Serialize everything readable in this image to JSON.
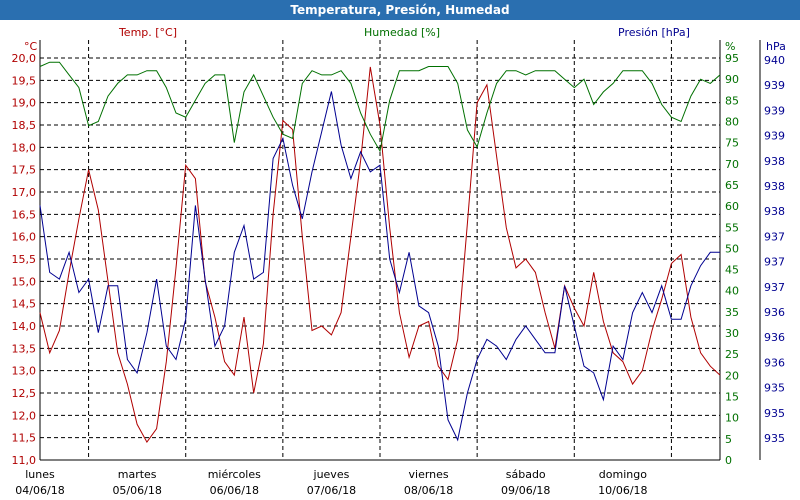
{
  "title": "Temperatura, Presión, Humedad",
  "colors": {
    "temperature": "#b00000",
    "humidity": "#007000",
    "pressure": "#000090",
    "title_bar": "#2a6fb0",
    "grid": "#000000",
    "axis": "#000000"
  },
  "chart_data": {
    "type": "line",
    "title": "Temperatura, Presión, Humedad",
    "grid": true,
    "x_range_days": [
      0,
      7
    ],
    "x_ticks": [
      {
        "day": "lunes",
        "date": "04/06/18"
      },
      {
        "day": "martes",
        "date": "05/06/18"
      },
      {
        "day": "miércoles",
        "date": "06/06/18"
      },
      {
        "day": "jueves",
        "date": "07/06/18"
      },
      {
        "day": "viernes",
        "date": "08/06/18"
      },
      {
        "day": "sábado",
        "date": "09/06/18"
      },
      {
        "day": "domingo",
        "date": "10/06/18"
      }
    ],
    "axes": {
      "temperature": {
        "label": "Temp. [°C]",
        "unit": "°C",
        "range": [
          11.0,
          20.0
        ],
        "ticks": [
          "11,0",
          "11,5",
          "12,0",
          "12,5",
          "13,0",
          "13,5",
          "14,0",
          "14,5",
          "15,0",
          "15,5",
          "16,0",
          "16,5",
          "17,0",
          "17,5",
          "18,0",
          "18,5",
          "19,0",
          "19,5",
          "20,0"
        ]
      },
      "humidity": {
        "label": "Humedad [%]",
        "unit": "%",
        "range": [
          0,
          95
        ],
        "ticks": [
          "0",
          "5",
          "10",
          "15",
          "20",
          "25",
          "30",
          "35",
          "40",
          "45",
          "50",
          "55",
          "60",
          "65",
          "70",
          "75",
          "80",
          "85",
          "90",
          "95"
        ]
      },
      "pressure": {
        "label": "Presión [hPa]",
        "unit": "hPa",
        "range": [
          934.5,
          940.5
        ],
        "ticks": [
          "935",
          "935",
          "935",
          "936",
          "936",
          "936",
          "937",
          "937",
          "937",
          "938",
          "938",
          "938",
          "939",
          "939",
          "939",
          "940"
        ]
      }
    },
    "series": [
      {
        "name": "Temp. [°C]",
        "axis": "temperature",
        "x": [
          0.0,
          0.1,
          0.2,
          0.3,
          0.4,
          0.5,
          0.6,
          0.7,
          0.8,
          0.9,
          1.0,
          1.1,
          1.2,
          1.3,
          1.4,
          1.5,
          1.6,
          1.7,
          1.8,
          1.9,
          2.0,
          2.1,
          2.2,
          2.3,
          2.4,
          2.5,
          2.6,
          2.7,
          2.8,
          2.9,
          3.0,
          3.1,
          3.2,
          3.3,
          3.4,
          3.5,
          3.6,
          3.7,
          3.8,
          3.9,
          4.0,
          4.1,
          4.2,
          4.3,
          4.4,
          4.5,
          4.6,
          4.7,
          4.8,
          4.9,
          5.0,
          5.1,
          5.2,
          5.3,
          5.4,
          5.5,
          5.6,
          5.7,
          5.8,
          5.9,
          6.0,
          6.1,
          6.2,
          6.3,
          6.4,
          6.5,
          6.6,
          6.7,
          6.8,
          6.9,
          7.0
        ],
        "values": [
          14.3,
          13.4,
          13.9,
          15.2,
          16.4,
          17.5,
          16.6,
          15.0,
          13.4,
          12.7,
          11.8,
          11.4,
          11.7,
          13.2,
          15.3,
          17.6,
          17.3,
          15.0,
          14.2,
          13.2,
          12.9,
          14.2,
          12.5,
          13.6,
          16.5,
          18.6,
          18.4,
          16.0,
          13.9,
          14.0,
          13.8,
          14.3,
          16.0,
          17.7,
          19.8,
          18.5,
          16.2,
          14.3,
          13.3,
          14.0,
          14.1,
          13.1,
          12.8,
          13.7,
          16.3,
          19.0,
          19.4,
          17.8,
          16.2,
          15.3,
          15.5,
          15.2,
          14.3,
          13.5,
          14.9,
          14.4,
          14.0,
          15.2,
          14.1,
          13.4,
          13.2,
          12.7,
          13.0,
          13.9,
          14.6,
          15.4,
          15.6,
          14.2,
          13.4,
          13.1,
          12.9
        ]
      },
      {
        "name": "Humedad [%]",
        "axis": "humidity",
        "x": [
          0.0,
          0.1,
          0.2,
          0.3,
          0.4,
          0.5,
          0.6,
          0.7,
          0.8,
          0.9,
          1.0,
          1.1,
          1.2,
          1.3,
          1.4,
          1.5,
          1.6,
          1.7,
          1.8,
          1.9,
          2.0,
          2.1,
          2.2,
          2.3,
          2.4,
          2.5,
          2.6,
          2.7,
          2.8,
          2.9,
          3.0,
          3.1,
          3.2,
          3.3,
          3.4,
          3.5,
          3.6,
          3.7,
          3.8,
          3.9,
          4.0,
          4.1,
          4.2,
          4.3,
          4.4,
          4.5,
          4.6,
          4.7,
          4.8,
          4.9,
          5.0,
          5.1,
          5.2,
          5.3,
          5.4,
          5.5,
          5.6,
          5.7,
          5.8,
          5.9,
          6.0,
          6.1,
          6.2,
          6.3,
          6.4,
          6.5,
          6.6,
          6.7,
          6.8,
          6.9,
          7.0
        ],
        "values": [
          93,
          94,
          94,
          91,
          88,
          79,
          80,
          86,
          89,
          91,
          91,
          92,
          92,
          88,
          82,
          81,
          85,
          89,
          91,
          91,
          75,
          87,
          91,
          86,
          81,
          77,
          76,
          89,
          92,
          91,
          91,
          92,
          89,
          82,
          77,
          73,
          85,
          92,
          92,
          92,
          93,
          93,
          93,
          89,
          78,
          74,
          82,
          89,
          92,
          92,
          91,
          92,
          92,
          92,
          90,
          88,
          90,
          84,
          87,
          89,
          92,
          92,
          92,
          89,
          84,
          81,
          80,
          86,
          90,
          89,
          91
        ]
      },
      {
        "name": "Presión [hPa]",
        "axis": "pressure",
        "x": [
          0.0,
          0.1,
          0.2,
          0.3,
          0.4,
          0.5,
          0.6,
          0.7,
          0.8,
          0.9,
          1.0,
          1.1,
          1.2,
          1.3,
          1.4,
          1.5,
          1.6,
          1.7,
          1.8,
          1.9,
          2.0,
          2.1,
          2.2,
          2.3,
          2.4,
          2.5,
          2.6,
          2.7,
          2.8,
          2.9,
          3.0,
          3.1,
          3.2,
          3.3,
          3.4,
          3.5,
          3.6,
          3.7,
          3.8,
          3.9,
          4.0,
          4.1,
          4.2,
          4.3,
          4.4,
          4.5,
          4.6,
          4.7,
          4.8,
          4.9,
          5.0,
          5.1,
          5.2,
          5.3,
          5.4,
          5.5,
          5.6,
          5.7,
          5.8,
          5.9,
          6.0,
          6.1,
          6.2,
          6.3,
          6.4,
          6.5,
          6.6,
          6.7,
          6.8,
          6.9,
          7.0
        ],
        "values": [
          938.3,
          937.3,
          937.2,
          937.6,
          937.0,
          937.2,
          936.4,
          937.1,
          937.1,
          936.0,
          935.8,
          936.4,
          937.2,
          936.2,
          936.0,
          936.6,
          938.3,
          937.2,
          936.2,
          936.5,
          937.6,
          938.0,
          937.2,
          937.3,
          939.0,
          939.3,
          938.6,
          938.1,
          938.8,
          939.4,
          940.0,
          939.2,
          938.7,
          939.1,
          938.8,
          938.9,
          937.5,
          937.0,
          937.6,
          936.8,
          936.7,
          936.2,
          935.1,
          934.8,
          935.5,
          936.0,
          936.3,
          936.2,
          936.0,
          936.3,
          936.5,
          936.3,
          936.1,
          936.1,
          937.1,
          936.5,
          935.9,
          935.8,
          935.4,
          936.2,
          936.0,
          936.7,
          937.0,
          936.7,
          937.1,
          936.6,
          936.6,
          937.1,
          937.4,
          937.6,
          937.6
        ]
      }
    ]
  }
}
